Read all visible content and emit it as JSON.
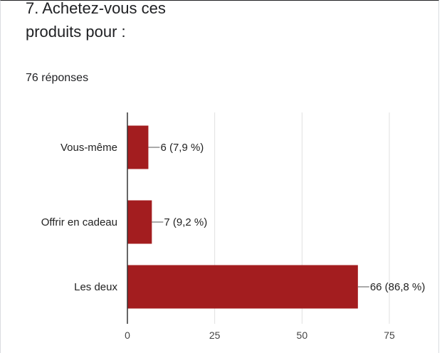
{
  "question": {
    "title_line1": "7. Achetez-vous ces",
    "title_line2": "produits pour :"
  },
  "response_count": "76 réponses",
  "chart_data": {
    "type": "bar",
    "orientation": "horizontal",
    "categories": [
      "Vous-même",
      "Offrir en cadeau",
      "Les deux"
    ],
    "values": [
      6,
      7,
      66
    ],
    "value_labels": [
      "6 (7,9 %)",
      "7 (9,2 %)",
      "66 (86,8 %)"
    ],
    "xlim": [
      0,
      75
    ],
    "x_ticks": [
      0,
      25,
      50,
      75
    ],
    "grid": true,
    "bar_color": "#a31d1f",
    "title": "",
    "xlabel": "",
    "ylabel": ""
  }
}
